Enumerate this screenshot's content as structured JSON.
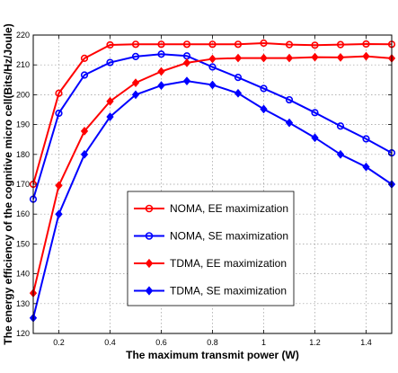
{
  "chart_data": {
    "type": "line",
    "xlabel": "The maximum transmit power (W)",
    "ylabel": "The energy efficiency of the cognitive micro cell(Bits/Hz/Joule)",
    "xlim": [
      0.1,
      1.5
    ],
    "ylim": [
      120,
      220
    ],
    "xticks": [
      0.2,
      0.4,
      0.6,
      0.8,
      1,
      1.2,
      1.4
    ],
    "yticks": [
      120,
      130,
      140,
      150,
      160,
      170,
      180,
      190,
      200,
      210,
      220
    ],
    "grid": true,
    "legend_position": "center",
    "x": [
      0.1,
      0.2,
      0.3,
      0.4,
      0.5,
      0.6,
      0.7,
      0.8,
      0.9,
      1.0,
      1.1,
      1.2,
      1.3,
      1.4,
      1.5
    ],
    "series": [
      {
        "name": "NOMA, EE maximization",
        "color": "#ff0000",
        "marker": "circle",
        "values": [
          170,
          200.5,
          212.2,
          216.7,
          216.9,
          216.9,
          216.9,
          216.9,
          216.9,
          217.3,
          216.8,
          216.6,
          216.8,
          217.0,
          216.9
        ]
      },
      {
        "name": "NOMA, SE maximization",
        "color": "#0000ff",
        "marker": "circle",
        "values": [
          165,
          193.8,
          206.6,
          210.8,
          212.8,
          213.6,
          213.0,
          209.3,
          205.8,
          202.1,
          198.3,
          194.0,
          189.5,
          185.2,
          180.5
        ]
      },
      {
        "name": "TDMA, EE maximization",
        "color": "#ff0000",
        "marker": "diamond",
        "values": [
          133.5,
          169.6,
          187.8,
          197.8,
          204.0,
          207.8,
          210.7,
          212.0,
          212.3,
          212.3,
          212.3,
          212.6,
          212.5,
          212.9,
          212.2
        ]
      },
      {
        "name": "TDMA, SE maximization",
        "color": "#0000ff",
        "marker": "diamond",
        "values": [
          125.2,
          160.0,
          180.0,
          192.6,
          200.0,
          203.1,
          204.6,
          203.3,
          200.5,
          195.2,
          190.6,
          185.6,
          180.0,
          175.8,
          170.0
        ]
      }
    ]
  }
}
